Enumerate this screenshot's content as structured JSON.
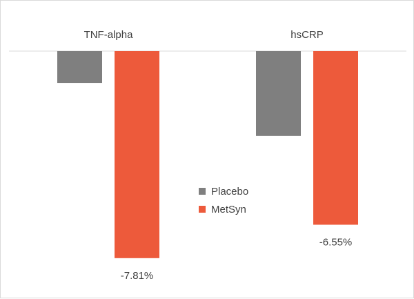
{
  "chart_data": {
    "type": "bar",
    "categories": [
      "TNF-alpha",
      "hsCRP"
    ],
    "series": [
      {
        "name": "Placebo",
        "color": "#7f7f7f",
        "values": [
          -1.2,
          -3.2
        ]
      },
      {
        "name": "MetSyn",
        "color": "#ed5a3b",
        "values": [
          -7.81,
          -6.55
        ]
      }
    ],
    "data_labels": [
      {
        "series": 1,
        "category": 0,
        "text": "-7.81%"
      },
      {
        "series": 1,
        "category": 1,
        "text": "-6.55%"
      }
    ],
    "category_axis_position": "top",
    "ylim": [
      -8.7,
      0
    ],
    "grid": false,
    "legend": {
      "position": "center"
    },
    "title": "",
    "xlabel": "",
    "ylabel": ""
  }
}
